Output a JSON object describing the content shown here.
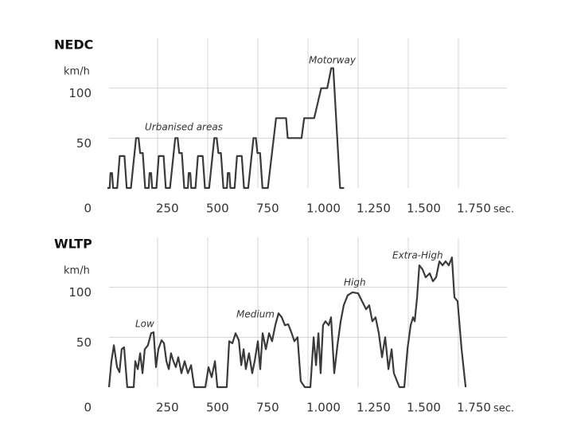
{
  "chart_data": [
    {
      "type": "line",
      "title": "NEDC",
      "y_unit": "km/h",
      "x_unit": "sec.",
      "xlim": [
        0,
        2000
      ],
      "ylim": [
        0,
        150
      ],
      "xticks": [
        {
          "value": 250,
          "label": "250"
        },
        {
          "value": 500,
          "label": "500"
        },
        {
          "value": 750,
          "label": "750"
        },
        {
          "value": 1000,
          "label": "1.000"
        },
        {
          "value": 1250,
          "label": "1.250"
        },
        {
          "value": 1500,
          "label": "1.500"
        },
        {
          "value": 1750,
          "label": "1.750"
        }
      ],
      "yticks": [
        0,
        50,
        100
      ],
      "grid": true,
      "annotations": [
        "Urbanised areas",
        "Motorway"
      ],
      "x": [
        0,
        11,
        15,
        23,
        28,
        49,
        61,
        85,
        96,
        117,
        143,
        155,
        163,
        176,
        188,
        195,
        206,
        210,
        218,
        223,
        244,
        256,
        280,
        291,
        312,
        338,
        350,
        358,
        371,
        383,
        390,
        401,
        405,
        413,
        418,
        439,
        451,
        475,
        486,
        507,
        533,
        545,
        553,
        566,
        578,
        585,
        596,
        600,
        608,
        613,
        634,
        646,
        670,
        681,
        702,
        728,
        740,
        748,
        761,
        773,
        780,
        800,
        841,
        891,
        899,
        968,
        981,
        1031,
        1066,
        1096,
        1116,
        1126,
        1160,
        1180
      ],
      "series": [
        {
          "color": "#3a3a3a",
          "values": [
            0,
            0,
            15,
            15,
            0,
            0,
            32,
            32,
            0,
            0,
            50,
            50,
            35,
            35,
            0,
            0,
            0,
            15,
            15,
            0,
            0,
            32,
            32,
            0,
            0,
            50,
            50,
            35,
            35,
            0,
            0,
            0,
            15,
            15,
            0,
            0,
            32,
            32,
            0,
            0,
            50,
            50,
            35,
            35,
            0,
            0,
            0,
            15,
            15,
            0,
            0,
            32,
            32,
            0,
            0,
            50,
            50,
            35,
            35,
            0,
            0,
            0,
            70,
            70,
            50,
            50,
            70,
            70,
            100,
            100,
            120,
            120,
            0,
            0
          ]
        }
      ]
    },
    {
      "type": "line",
      "title": "WLTP",
      "y_unit": "km/h",
      "x_unit": "sec.",
      "xlim": [
        0,
        2000
      ],
      "ylim": [
        0,
        150
      ],
      "xticks": [
        {
          "value": 250,
          "label": "250"
        },
        {
          "value": 500,
          "label": "500"
        },
        {
          "value": 750,
          "label": "750"
        },
        {
          "value": 1000,
          "label": "1.000"
        },
        {
          "value": 1250,
          "label": "1.250"
        },
        {
          "value": 1500,
          "label": "1.500"
        },
        {
          "value": 1750,
          "label": "1.750"
        }
      ],
      "yticks": [
        0,
        50,
        100
      ],
      "grid": true,
      "annotations": [
        "Low",
        "Medium",
        "High",
        "Extra-High"
      ],
      "x": [
        8,
        20,
        32,
        48,
        60,
        71,
        83,
        99,
        131,
        139,
        151,
        163,
        175,
        186,
        202,
        218,
        230,
        242,
        254,
        270,
        282,
        294,
        306,
        317,
        329,
        341,
        353,
        369,
        385,
        401,
        417,
        433,
        488,
        504,
        520,
        536,
        548,
        595,
        607,
        623,
        639,
        655,
        667,
        679,
        690,
        706,
        722,
        734,
        750,
        762,
        774,
        790,
        806,
        821,
        837,
        853,
        869,
        885,
        901,
        917,
        932,
        948,
        964,
        984,
        1012,
        1028,
        1040,
        1052,
        1063,
        1075,
        1087,
        1103,
        1115,
        1131,
        1147,
        1163,
        1178,
        1198,
        1222,
        1250,
        1270,
        1290,
        1305,
        1321,
        1337,
        1353,
        1369,
        1385,
        1401,
        1417,
        1428,
        1444,
        1456,
        1480,
        1496,
        1512,
        1524,
        1532,
        1544,
        1555,
        1571,
        1587,
        1607,
        1623,
        1639,
        1655,
        1671,
        1686,
        1702,
        1718,
        1730,
        1746,
        1766,
        1786
      ],
      "series": [
        {
          "color": "#3a3a3a",
          "values": [
            0,
            26,
            42,
            20,
            15,
            38,
            40,
            0,
            0,
            26,
            18,
            34,
            14,
            38,
            42,
            54,
            55,
            20,
            38,
            47,
            44,
            26,
            18,
            34,
            26,
            20,
            30,
            14,
            26,
            14,
            22,
            0,
            0,
            20,
            10,
            26,
            0,
            0,
            46,
            44,
            54,
            47,
            22,
            38,
            18,
            34,
            14,
            26,
            46,
            18,
            54,
            38,
            54,
            46,
            62,
            74,
            70,
            62,
            63,
            55,
            46,
            50,
            6,
            0,
            0,
            50,
            22,
            54,
            14,
            62,
            66,
            62,
            70,
            14,
            42,
            66,
            82,
            92,
            95,
            94,
            86,
            78,
            82,
            66,
            70,
            54,
            30,
            50,
            18,
            38,
            14,
            6,
            0,
            0,
            38,
            62,
            70,
            66,
            90,
            122,
            118,
            110,
            114,
            106,
            110,
            126,
            122,
            126,
            122,
            130,
            90,
            86,
            38,
            0
          ]
        }
      ]
    }
  ]
}
